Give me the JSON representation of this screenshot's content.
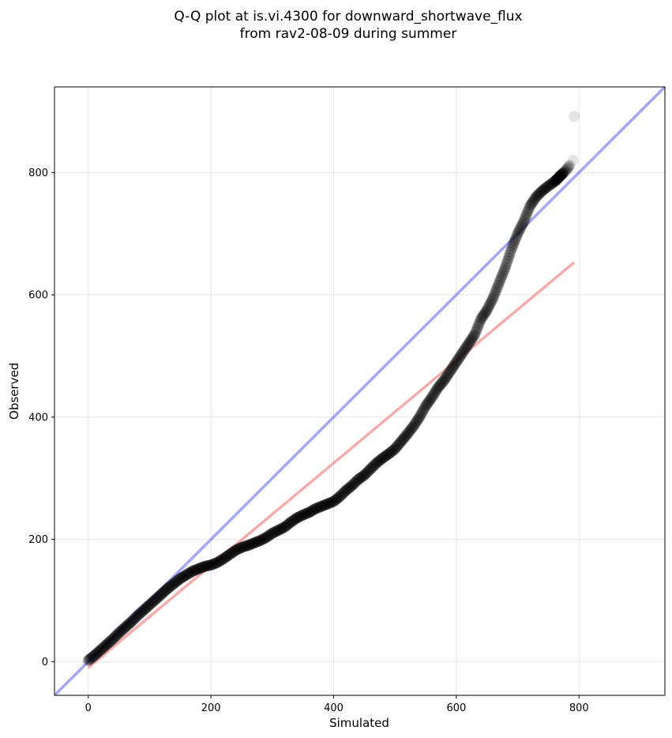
{
  "chart_data": {
    "type": "scatter",
    "title_lines": [
      "Q-Q plot at is.vi.4300 for downward_shortwave_flux",
      "from rav2-08-09 during summer"
    ],
    "xlabel": "Simulated",
    "ylabel": "Observed",
    "xlim": [
      -55,
      940
    ],
    "ylim": [
      -55,
      940
    ],
    "xticks": [
      0,
      200,
      400,
      600,
      800
    ],
    "yticks": [
      0,
      200,
      400,
      600,
      800
    ],
    "grid": true,
    "colors": {
      "points": "#000000",
      "identity_line": "#4c4cf5",
      "fit_line": "#f08080"
    },
    "identity_line": {
      "x": [
        -55,
        940
      ],
      "y": [
        -55,
        940
      ]
    },
    "fit_line": {
      "x": [
        0,
        792
      ],
      "y": [
        -10,
        653
      ]
    },
    "quantiles": {
      "x": [
        0,
        10,
        20,
        30,
        40,
        50,
        60,
        70,
        80,
        90,
        100,
        110,
        120,
        130,
        140,
        150,
        160,
        170,
        180,
        190,
        200,
        210,
        220,
        230,
        240,
        250,
        260,
        270,
        280,
        290,
        300,
        310,
        320,
        330,
        340,
        350,
        360,
        370,
        380,
        390,
        400,
        410,
        420,
        430,
        440,
        450,
        460,
        470,
        480,
        490,
        500,
        510,
        520,
        530,
        540,
        550,
        560,
        570,
        580,
        590,
        600,
        610,
        620,
        630,
        640,
        650,
        660,
        670,
        680,
        690,
        700,
        710,
        720,
        730,
        740,
        750,
        760,
        765,
        770,
        775,
        780,
        785,
        790,
        792
      ],
      "y": [
        2,
        10,
        19,
        28,
        37,
        47,
        56,
        65,
        75,
        84,
        93,
        102,
        111,
        120,
        128,
        136,
        142,
        148,
        152,
        156,
        158,
        162,
        168,
        175,
        182,
        187,
        190,
        194,
        198,
        203,
        210,
        215,
        220,
        228,
        235,
        240,
        244,
        250,
        254,
        258,
        262,
        270,
        280,
        288,
        298,
        305,
        315,
        325,
        333,
        340,
        348,
        360,
        372,
        385,
        400,
        418,
        432,
        448,
        460,
        475,
        490,
        505,
        520,
        535,
        560,
        575,
        595,
        620,
        645,
        675,
        700,
        720,
        745,
        760,
        770,
        778,
        785,
        790,
        795,
        800,
        805,
        812,
        820,
        892
      ]
    }
  }
}
